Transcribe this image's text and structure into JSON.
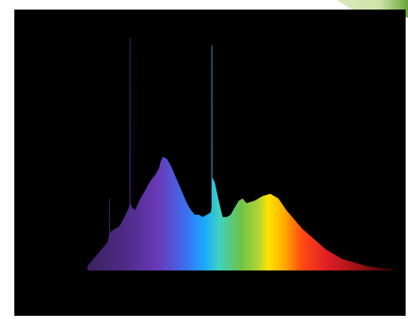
{
  "app": {
    "title": ""
  },
  "colors": {
    "page_background": "#ffffff",
    "chart_background": "#000000",
    "corner_accent": "#6aa43a"
  },
  "chart_data": {
    "type": "area",
    "title": "",
    "subtitle": "",
    "xlabel": "",
    "ylabel": "",
    "x": [
      0,
      5,
      10,
      15,
      20,
      25,
      27,
      27.1,
      27.9,
      28,
      30,
      35,
      40,
      45,
      52,
      53,
      53.1,
      53.9,
      54,
      56,
      60,
      65,
      70,
      75,
      80,
      85,
      90,
      92,
      95,
      100,
      105,
      110,
      115,
      120,
      125,
      130,
      135,
      140,
      145,
      150,
      155,
      156,
      156.1,
      156.9,
      157,
      160,
      165,
      170,
      175,
      180,
      185,
      190,
      195,
      200,
      210,
      220,
      230,
      240,
      250,
      260,
      270,
      280,
      290,
      300,
      310,
      320,
      330,
      340,
      350,
      360,
      370,
      380,
      385
    ],
    "values": [
      0.02,
      0.04,
      0.06,
      0.08,
      0.1,
      0.12,
      0.15,
      0.31,
      0.31,
      0.16,
      0.17,
      0.18,
      0.19,
      0.22,
      0.27,
      0.29,
      1.0,
      1.0,
      0.29,
      0.27,
      0.26,
      0.3,
      0.33,
      0.36,
      0.39,
      0.41,
      0.44,
      0.47,
      0.49,
      0.48,
      0.45,
      0.41,
      0.37,
      0.33,
      0.29,
      0.26,
      0.24,
      0.24,
      0.23,
      0.24,
      0.25,
      0.27,
      0.97,
      0.97,
      0.4,
      0.38,
      0.3,
      0.23,
      0.23,
      0.24,
      0.27,
      0.3,
      0.31,
      0.29,
      0.3,
      0.32,
      0.33,
      0.31,
      0.26,
      0.22,
      0.18,
      0.15,
      0.12,
      0.09,
      0.07,
      0.05,
      0.04,
      0.03,
      0.02,
      0.015,
      0.01,
      0.008,
      0.005
    ],
    "xlim": [
      0,
      385
    ],
    "ylim": [
      0,
      1
    ],
    "grid": false,
    "legend": "none",
    "gradient_stops": [
      {
        "offset": 0.0,
        "color": "#3b205f"
      },
      {
        "offset": 0.12,
        "color": "#4d2b86"
      },
      {
        "offset": 0.23,
        "color": "#6a39b7"
      },
      {
        "offset": 0.32,
        "color": "#3f6df0"
      },
      {
        "offset": 0.38,
        "color": "#1aa7ff"
      },
      {
        "offset": 0.43,
        "color": "#3fd1c0"
      },
      {
        "offset": 0.5,
        "color": "#6cc24a"
      },
      {
        "offset": 0.56,
        "color": "#b4d432"
      },
      {
        "offset": 0.59,
        "color": "#ffe300"
      },
      {
        "offset": 0.64,
        "color": "#ffb000"
      },
      {
        "offset": 0.7,
        "color": "#ff4b12"
      },
      {
        "offset": 0.78,
        "color": "#e21e26"
      },
      {
        "offset": 0.88,
        "color": "#a01112"
      },
      {
        "offset": 1.0,
        "color": "#2a0202"
      }
    ]
  }
}
